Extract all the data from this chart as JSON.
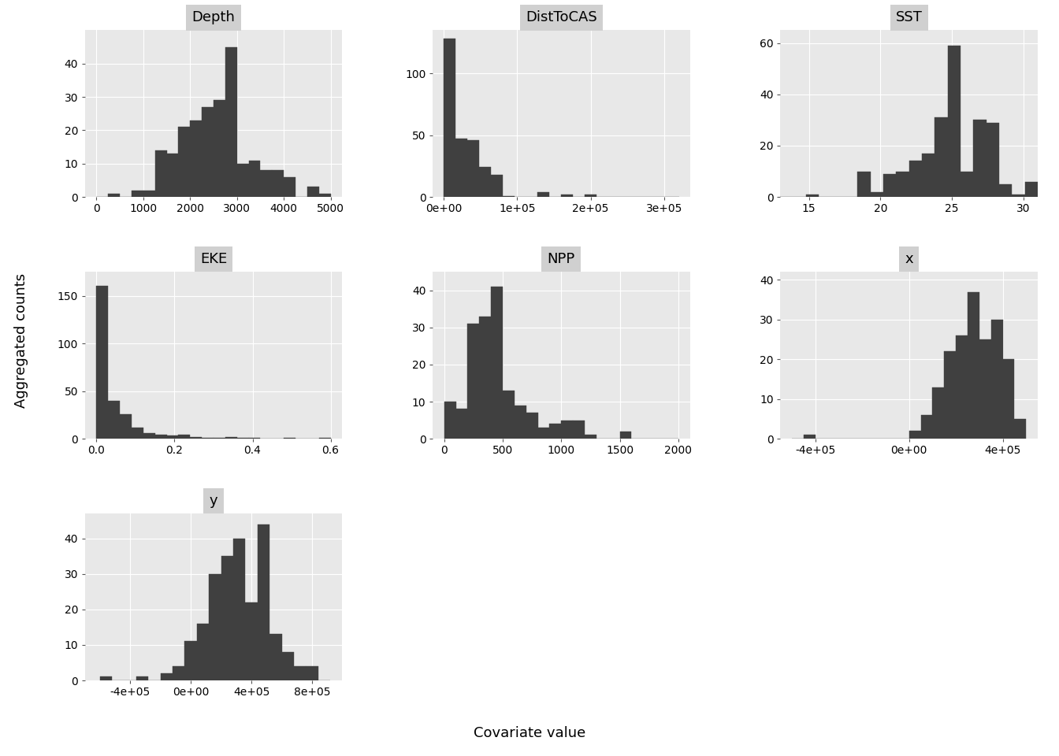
{
  "panels": [
    {
      "title": "Depth",
      "row": 0,
      "col": 0,
      "xlim": [
        -250,
        5250
      ],
      "ylim": [
        0,
        50
      ],
      "yticks": [
        0,
        10,
        20,
        30,
        40
      ],
      "xticks": [
        0,
        1000,
        2000,
        3000,
        4000,
        5000
      ],
      "xticklabels": [
        "0",
        "1000",
        "2000",
        "3000",
        "4000",
        "5000"
      ],
      "bin_edges": [
        0,
        250,
        500,
        750,
        1000,
        1250,
        1500,
        1750,
        2000,
        2250,
        2500,
        2750,
        3000,
        3250,
        3500,
        3750,
        4000,
        4250,
        4500,
        4750,
        5000
      ],
      "counts": [
        0,
        1,
        0,
        2,
        2,
        14,
        13,
        21,
        23,
        27,
        29,
        45,
        10,
        11,
        8,
        8,
        6,
        0,
        3,
        1
      ]
    },
    {
      "title": "DistToCAS",
      "row": 0,
      "col": 1,
      "xlim": [
        -15000,
        335000
      ],
      "ylim": [
        0,
        135
      ],
      "yticks": [
        0,
        50,
        100
      ],
      "xticks": [
        0,
        100000,
        200000,
        300000
      ],
      "xticklabels": [
        "0e+00",
        "1e+05",
        "2e+05",
        "3e+05"
      ],
      "bin_edges": [
        0,
        16000,
        32000,
        48000,
        64000,
        80000,
        96000,
        112000,
        128000,
        144000,
        160000,
        176000,
        192000,
        208000,
        224000,
        240000,
        256000,
        272000,
        288000,
        304000,
        320000
      ],
      "counts": [
        128,
        47,
        46,
        24,
        18,
        1,
        0,
        0,
        4,
        0,
        2,
        0,
        2,
        0,
        0,
        0,
        0,
        0,
        0,
        0
      ]
    },
    {
      "title": "SST",
      "row": 0,
      "col": 2,
      "xlim": [
        13,
        31
      ],
      "ylim": [
        0,
        65
      ],
      "yticks": [
        0,
        20,
        40,
        60
      ],
      "xticks": [
        15,
        20,
        25,
        30
      ],
      "xticklabels": [
        "15",
        "20",
        "25",
        "30"
      ],
      "bin_edges": [
        13,
        13.9,
        14.8,
        15.7,
        16.6,
        17.5,
        18.4,
        19.3,
        20.2,
        21.1,
        22.0,
        22.9,
        23.8,
        24.7,
        25.6,
        26.5,
        27.4,
        28.3,
        29.2,
        30.1,
        31.0
      ],
      "counts": [
        0,
        0,
        1,
        0,
        0,
        0,
        10,
        2,
        9,
        10,
        14,
        17,
        31,
        59,
        10,
        30,
        29,
        5,
        1,
        6
      ]
    },
    {
      "title": "EKE",
      "row": 1,
      "col": 0,
      "xlim": [
        -0.03,
        0.63
      ],
      "ylim": [
        0,
        175
      ],
      "yticks": [
        0,
        50,
        100,
        150
      ],
      "xticks": [
        0.0,
        0.2,
        0.4,
        0.6
      ],
      "xticklabels": [
        "0.0",
        "0.2",
        "0.4",
        "0.6"
      ],
      "bin_edges": [
        0.0,
        0.03,
        0.06,
        0.09,
        0.12,
        0.15,
        0.18,
        0.21,
        0.24,
        0.27,
        0.3,
        0.33,
        0.36,
        0.39,
        0.42,
        0.45,
        0.48,
        0.51,
        0.54,
        0.57,
        0.6
      ],
      "counts": [
        160,
        40,
        26,
        12,
        6,
        4,
        3,
        4,
        2,
        1,
        1,
        2,
        1,
        1,
        0,
        0,
        1,
        0,
        0,
        1
      ]
    },
    {
      "title": "NPP",
      "row": 1,
      "col": 1,
      "xlim": [
        -100,
        2100
      ],
      "ylim": [
        0,
        45
      ],
      "yticks": [
        0,
        10,
        20,
        30,
        40
      ],
      "xticks": [
        0,
        500,
        1000,
        1500,
        2000
      ],
      "xticklabels": [
        "0",
        "500",
        "1000",
        "1500",
        "2000"
      ],
      "bin_edges": [
        0,
        100,
        200,
        300,
        400,
        500,
        600,
        700,
        800,
        900,
        1000,
        1100,
        1200,
        1300,
        1400,
        1500,
        1600,
        1700,
        1800,
        1900,
        2000
      ],
      "counts": [
        10,
        8,
        31,
        33,
        41,
        13,
        9,
        7,
        3,
        4,
        5,
        5,
        1,
        0,
        0,
        2,
        0,
        0,
        0,
        0
      ]
    },
    {
      "title": "x",
      "row": 1,
      "col": 2,
      "xlim": [
        -550000,
        550000
      ],
      "ylim": [
        0,
        42
      ],
      "yticks": [
        0,
        10,
        20,
        30,
        40
      ],
      "xticks": [
        -400000,
        0,
        400000
      ],
      "xticklabels": [
        "-4e+05",
        "0e+00",
        "4e+05"
      ],
      "bin_edges": [
        -500000,
        -450000,
        -400000,
        -350000,
        -300000,
        -250000,
        -200000,
        -150000,
        -100000,
        -50000,
        0,
        50000,
        100000,
        150000,
        200000,
        250000,
        300000,
        350000,
        400000,
        450000,
        500000
      ],
      "counts": [
        0,
        1,
        0,
        0,
        0,
        0,
        0,
        0,
        0,
        0,
        2,
        6,
        13,
        22,
        26,
        37,
        25,
        30,
        20,
        5
      ]
    },
    {
      "title": "y",
      "row": 2,
      "col": 0,
      "xlim": [
        -700000,
        1000000
      ],
      "ylim": [
        0,
        47
      ],
      "yticks": [
        0,
        10,
        20,
        30,
        40
      ],
      "xticks": [
        -400000,
        0,
        400000,
        800000
      ],
      "xticklabels": [
        "-4e+05",
        "0e+00",
        "4e+05",
        "8e+05"
      ],
      "bin_edges": [
        -600000,
        -520000,
        -440000,
        -360000,
        -280000,
        -200000,
        -120000,
        -40000,
        40000,
        120000,
        200000,
        280000,
        360000,
        440000,
        520000,
        600000,
        680000,
        760000,
        840000,
        920000
      ],
      "counts": [
        1,
        0,
        0,
        1,
        0,
        2,
        4,
        11,
        16,
        30,
        35,
        40,
        22,
        44,
        13,
        8,
        4,
        4,
        0
      ]
    }
  ],
  "bar_color": "#404040",
  "panel_bg": "#e8e8e8",
  "strip_bg": "#d0d0d0",
  "fig_bg": "#ffffff",
  "ylabel": "Aggregated counts",
  "xlabel": "Covariate value",
  "grid_color": "#ffffff",
  "title_fontsize": 13,
  "axis_fontsize": 12,
  "label_fontsize": 13
}
